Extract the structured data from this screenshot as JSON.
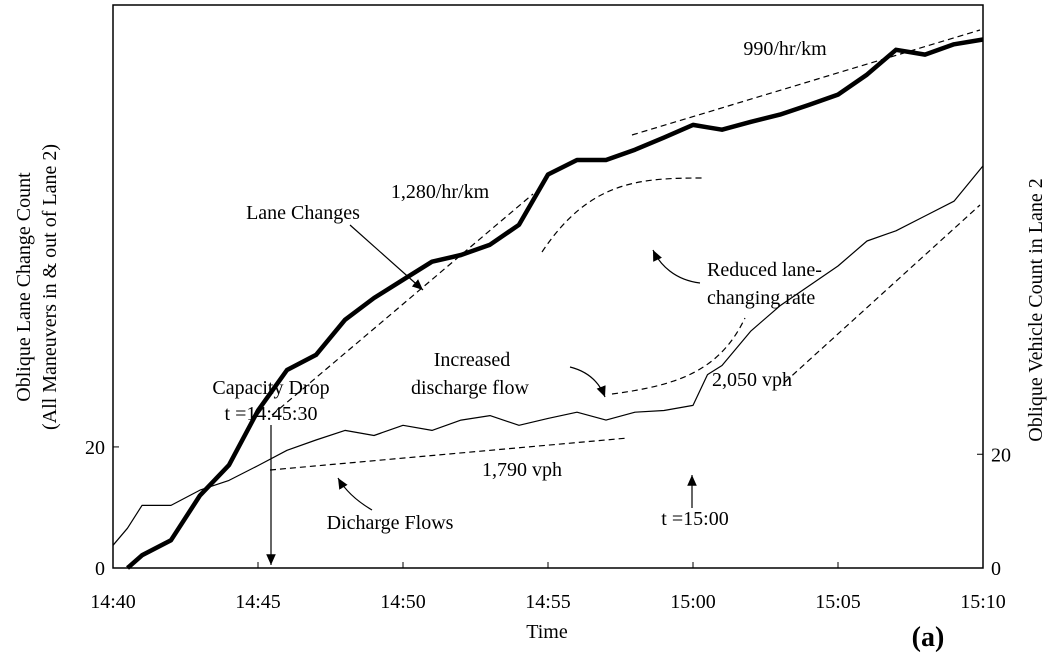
{
  "chart_data": {
    "type": "line",
    "xlabel": "Time",
    "ylabel": [
      "Oblique Lane Change Count",
      "(All Maneuvers in & out of Lane 2)"
    ],
    "y2label": "Oblique Vehicle Count in Lane 2",
    "panel_label": "(a)",
    "x": [
      "14:40",
      "14:40:30",
      "14:41",
      "14:42",
      "14:43",
      "14:44",
      "14:45",
      "14:46",
      "14:47",
      "14:48",
      "14:49",
      "14:50",
      "14:51",
      "14:52",
      "14:53",
      "14:54",
      "14:55",
      "14:56",
      "14:57",
      "14:58",
      "14:59",
      "15:00",
      "15:00:30",
      "15:01",
      "15:02",
      "15:03",
      "15:04",
      "15:05",
      "15:06",
      "15:07",
      "15:08",
      "15:09",
      "15:10"
    ],
    "xlim": [
      "14:40",
      "15:10"
    ],
    "xticks": [
      "14:40",
      "14:45",
      "14:50",
      "14:55",
      "15:00",
      "15:05",
      "15:10"
    ],
    "ylim": [
      0,
      93
    ],
    "yticks": [
      0,
      20
    ],
    "y2lim": [
      0,
      99
    ],
    "y2ticks": [
      0,
      20
    ],
    "series": [
      {
        "name": "Lane Changes",
        "color": "#000000",
        "width": 4.5,
        "values": [
          null,
          0,
          2.1,
          4.6,
          12,
          17,
          26,
          32.7,
          35.2,
          41,
          44.6,
          47.6,
          50.6,
          51.7,
          53.4,
          56.7,
          65,
          67.4,
          67.4,
          69.1,
          71.1,
          73.2,
          72.8,
          72.4,
          73.7,
          74.9,
          76.5,
          78.2,
          81.5,
          85.6,
          84.8,
          86.5,
          87.3
        ]
      },
      {
        "name": "Dicharge Flows",
        "color": "#000000",
        "width": 1.2,
        "axis": "y2",
        "values": [
          4,
          7,
          11,
          11,
          13.7,
          15.4,
          18,
          20.7,
          22.5,
          24.2,
          23.3,
          25.1,
          24.2,
          26,
          26.8,
          25.1,
          26.3,
          27.4,
          26,
          27.4,
          27.7,
          28.6,
          34,
          35.6,
          41.7,
          46.1,
          49.6,
          53.1,
          57.5,
          59.3,
          61.9,
          64.5,
          70.7
        ]
      }
    ],
    "annotations": {
      "rate_top": "990/hr/km",
      "rate_mid": "1,280/hr/km",
      "reduced": [
        "Reduced lane-",
        "changing rate"
      ],
      "capacity_drop": [
        "Capacity Drop",
        "t =14:45:30"
      ],
      "increased": [
        "Increased",
        "discharge flow"
      ],
      "flow_high": "2,050 vph",
      "flow_low": "1,790 vph",
      "t_1500": "t =15:00"
    }
  }
}
